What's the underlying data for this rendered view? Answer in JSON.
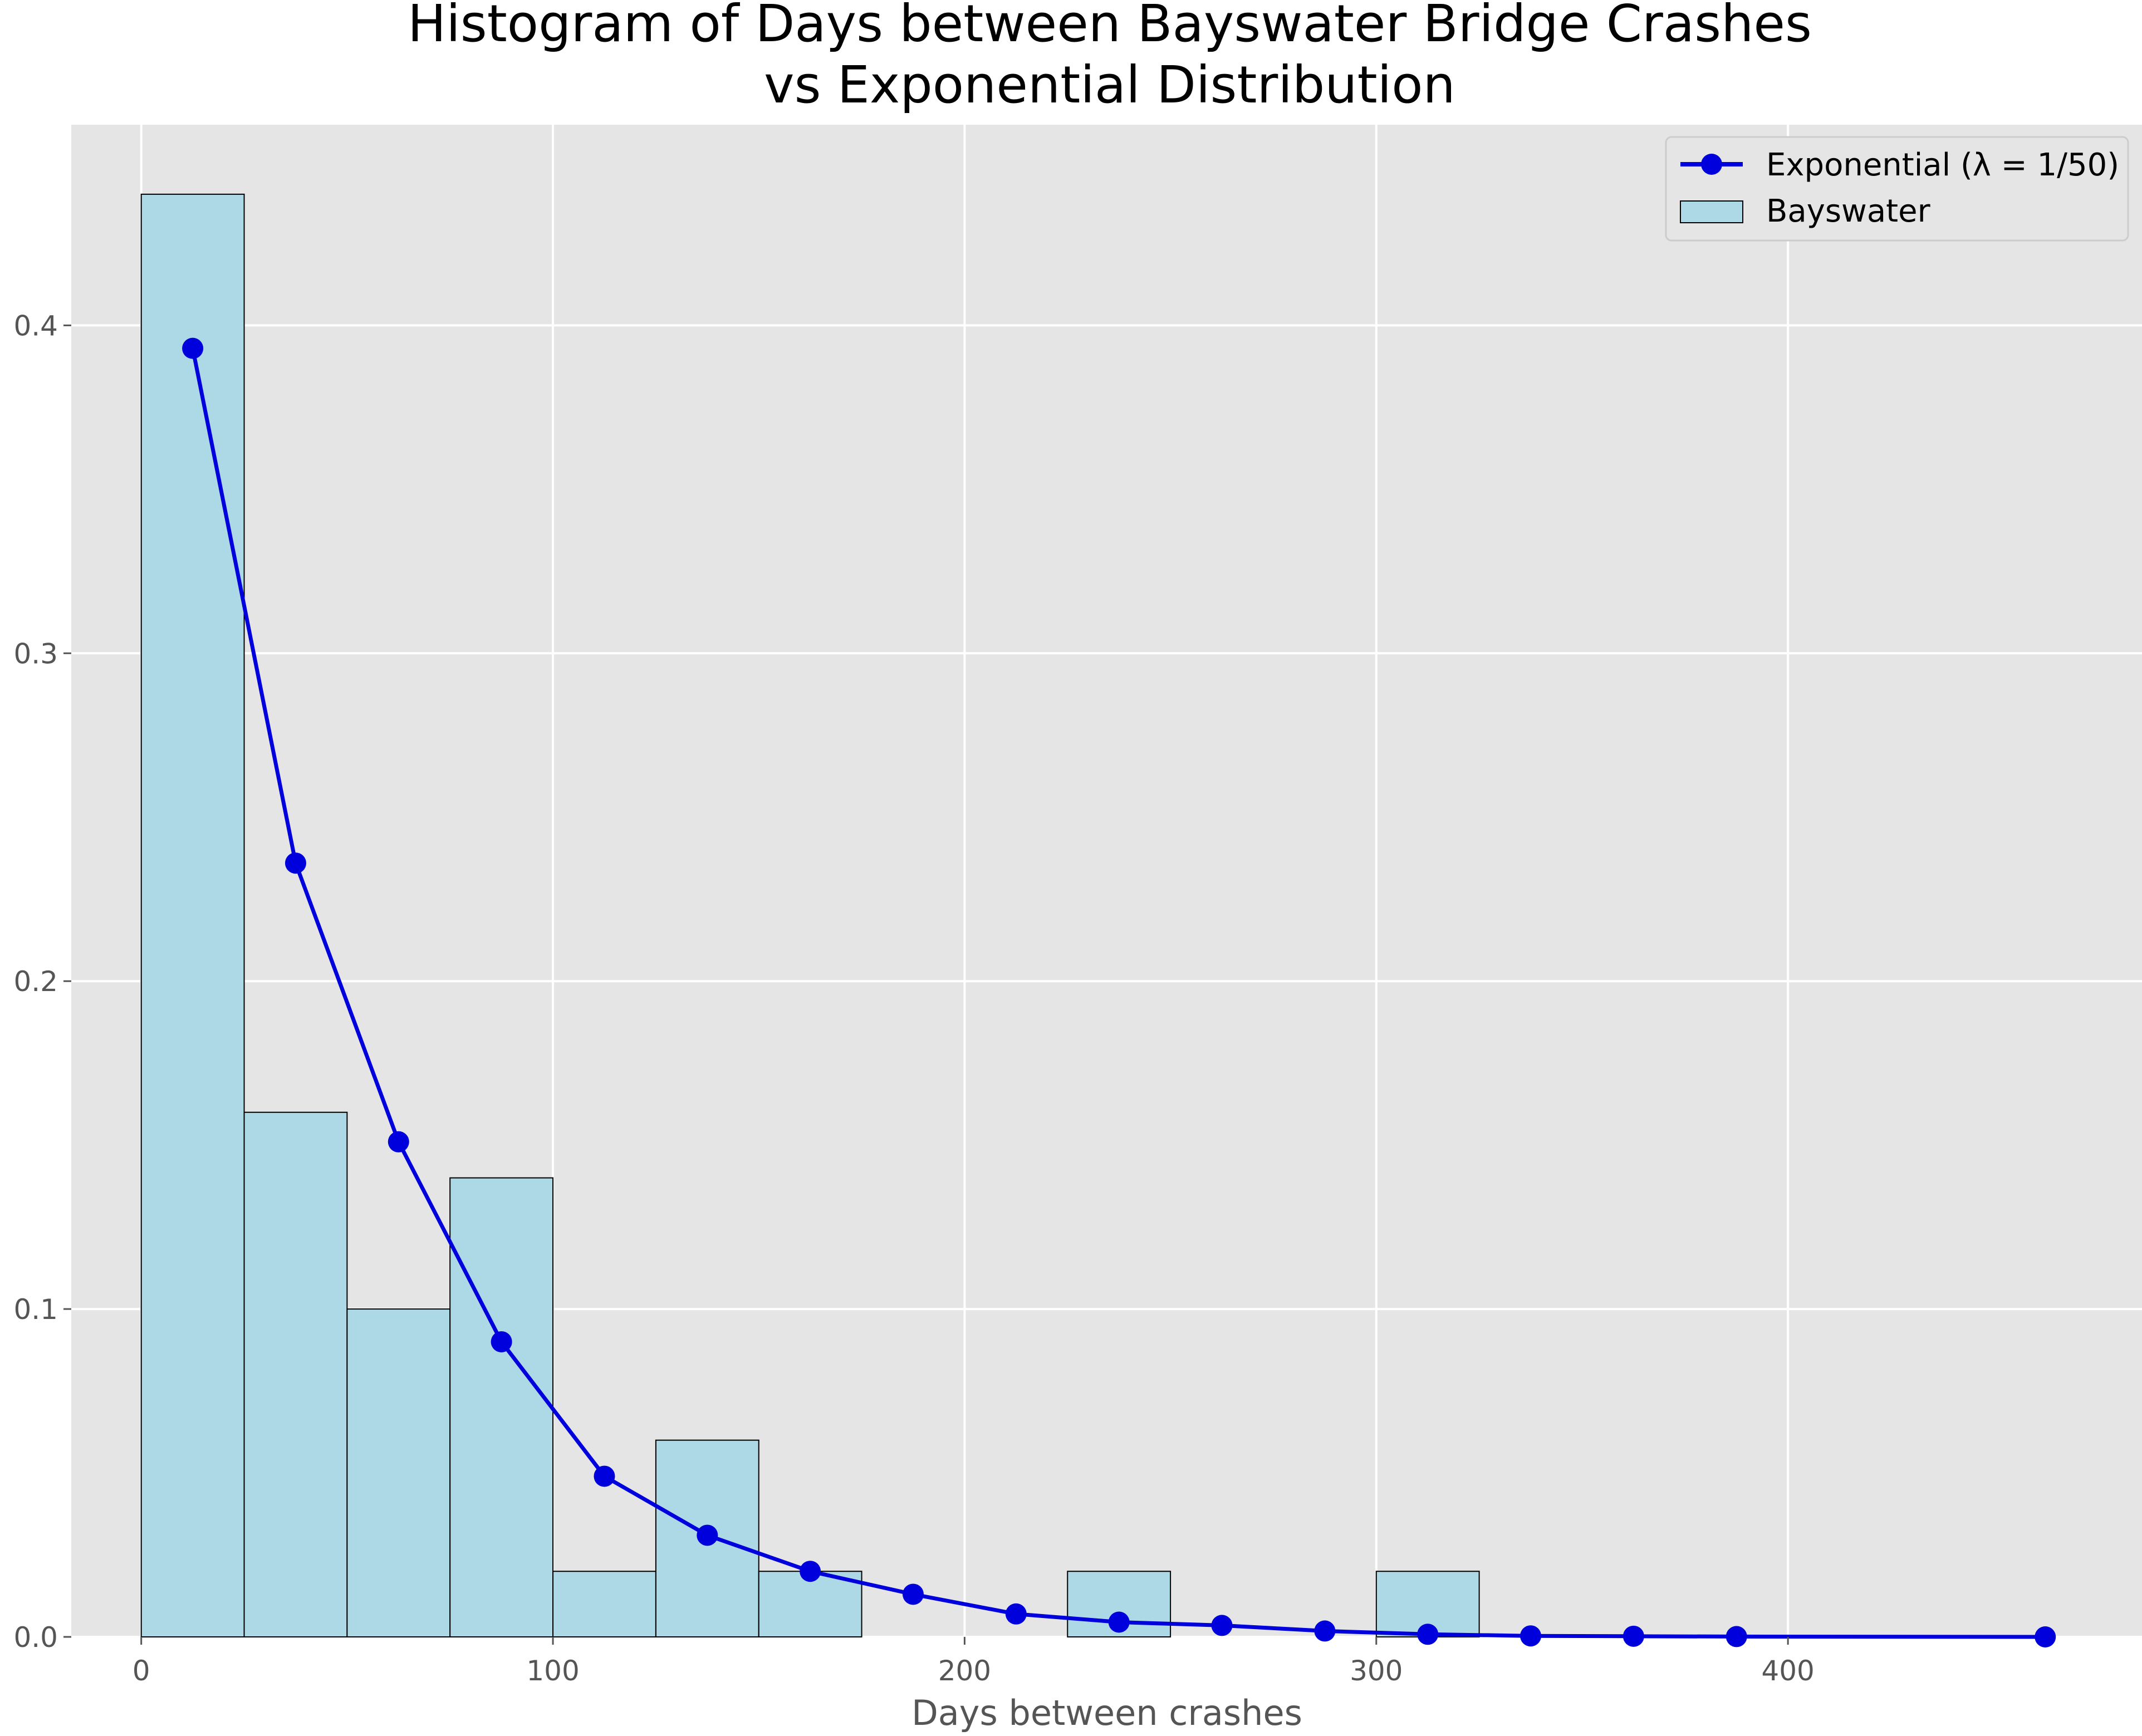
{
  "chart_data": {
    "type": "bar",
    "title_line1": "Histogram of Days between Bayswater Bridge Crashes",
    "title_line2": "vs Exponential Distribution",
    "xlabel": "Days between crashes",
    "ylabel": "",
    "xlim": [
      -17,
      486
    ],
    "ylim": [
      0,
      0.4612
    ],
    "xticks": [
      0,
      100,
      200,
      300,
      400
    ],
    "yticks": [
      0.0,
      0.1,
      0.2,
      0.3,
      0.4
    ],
    "grid": true,
    "legend_position": "top-right",
    "histogram": {
      "name": "Bayswater",
      "color": "#add8e6",
      "edge_color": "#000000",
      "bin_edges": [
        0,
        25,
        50,
        75,
        100,
        125,
        150,
        175,
        200,
        225,
        250,
        275,
        300,
        325
      ],
      "values": [
        0.44,
        0.16,
        0.1,
        0.14,
        0.02,
        0.06,
        0.02,
        0,
        0,
        0.02,
        0,
        0,
        0.02
      ]
    },
    "line": {
      "name": "Exponential (λ = 1/50)",
      "color": "#0000dd",
      "x": [
        12.5,
        37.5,
        62.5,
        87.5,
        112.5,
        137.5,
        162.5,
        187.5,
        212.5,
        237.5,
        262.5,
        287.5,
        312.5,
        337.5,
        362.5,
        387.5,
        462.5
      ],
      "y": [
        0.393,
        0.236,
        0.151,
        0.09,
        0.049,
        0.031,
        0.02,
        0.013,
        0.007,
        0.0045,
        0.0035,
        0.0018,
        0.0008,
        0.0003,
        0.0002,
        0.0001,
        0.0
      ]
    }
  }
}
